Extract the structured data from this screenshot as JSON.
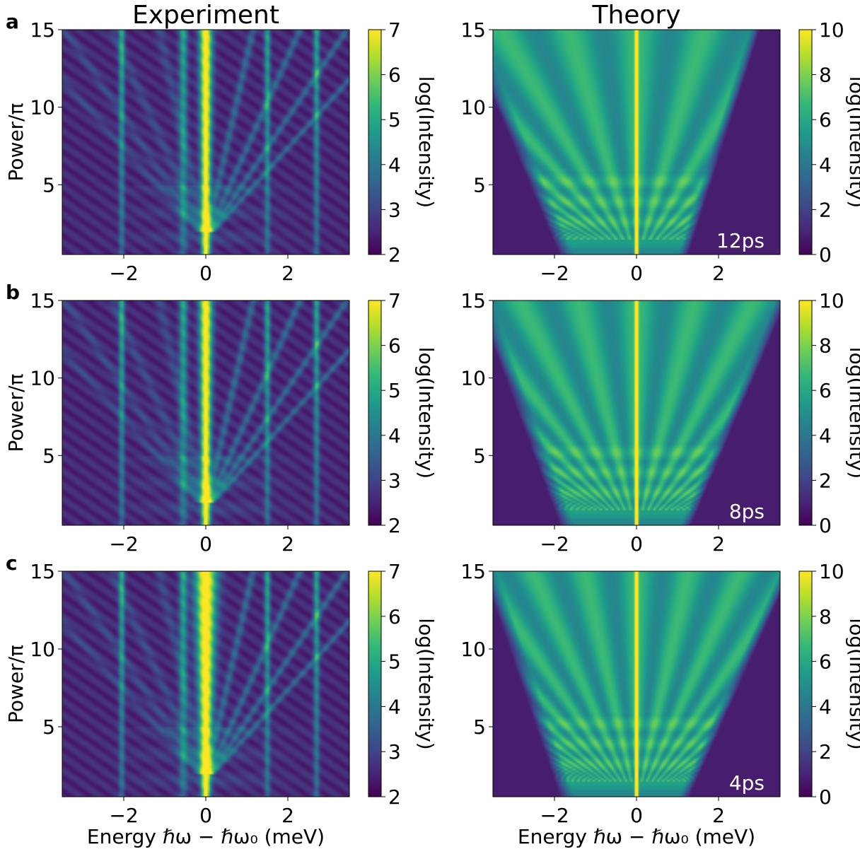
{
  "figure": {
    "column_titles": [
      "Experiment",
      "Theory"
    ],
    "panel_letters": [
      "a",
      "b",
      "c"
    ],
    "xlabel": "Energy ℏω − ℏω₀ (meV)",
    "ylabel": "Power/π",
    "colorbar_label": "log(Intensity)"
  },
  "chart_data": [
    {
      "type": "heatmap",
      "title": "Experiment",
      "panel": "a",
      "xlabel": "",
      "ylabel": "Power/π",
      "xlim": [
        -3.5,
        3.5
      ],
      "ylim": [
        0.5,
        15
      ],
      "xticks": [
        -2,
        0,
        2
      ],
      "yticks": [
        5,
        10,
        15
      ],
      "colorbar": {
        "label": "log(Intensity)",
        "range": [
          2,
          7
        ],
        "ticks": [
          2,
          3,
          4,
          5,
          6,
          7
        ]
      }
    },
    {
      "type": "heatmap",
      "title": "Theory",
      "panel": "a",
      "annotation": "12ps",
      "xlabel": "",
      "ylabel": "",
      "xlim": [
        -3.5,
        3.5
      ],
      "ylim": [
        0.5,
        15
      ],
      "xticks": [
        -2,
        0,
        2
      ],
      "yticks": [
        5,
        10,
        15
      ],
      "colorbar": {
        "label": "log(Intensity)",
        "range": [
          0,
          10
        ],
        "ticks": [
          0,
          2,
          4,
          6,
          8,
          10
        ]
      }
    },
    {
      "type": "heatmap",
      "title": "",
      "panel": "b",
      "xlabel": "",
      "ylabel": "Power/π",
      "xlim": [
        -3.5,
        3.5
      ],
      "ylim": [
        0.5,
        15
      ],
      "xticks": [
        -2,
        0,
        2
      ],
      "yticks": [
        5,
        10,
        15
      ],
      "colorbar": {
        "label": "log(Intensity)",
        "range": [
          2,
          7
        ],
        "ticks": [
          2,
          3,
          4,
          5,
          6,
          7
        ]
      }
    },
    {
      "type": "heatmap",
      "title": "",
      "panel": "b",
      "annotation": "8ps",
      "xlabel": "",
      "ylabel": "",
      "xlim": [
        -3.5,
        3.5
      ],
      "ylim": [
        0.5,
        15
      ],
      "xticks": [
        -2,
        0,
        2
      ],
      "yticks": [
        5,
        10,
        15
      ],
      "colorbar": {
        "label": "log(Intensity)",
        "range": [
          0,
          10
        ],
        "ticks": [
          0,
          2,
          4,
          6,
          8,
          10
        ]
      }
    },
    {
      "type": "heatmap",
      "title": "",
      "panel": "c",
      "xlabel": "Energy ℏω − ℏω₀ (meV)",
      "ylabel": "Power/π",
      "xlim": [
        -3.5,
        3.5
      ],
      "ylim": [
        0.5,
        15
      ],
      "xticks": [
        -2,
        0,
        2
      ],
      "yticks": [
        5,
        10,
        15
      ],
      "colorbar": {
        "label": "log(Intensity)",
        "range": [
          2,
          7
        ],
        "ticks": [
          2,
          3,
          4,
          5,
          6,
          7
        ]
      }
    },
    {
      "type": "heatmap",
      "title": "",
      "panel": "c",
      "annotation": "4ps",
      "xlabel": "Energy ℏω − ℏω₀ (meV)",
      "ylabel": "",
      "xlim": [
        -3.5,
        3.5
      ],
      "ylim": [
        0.5,
        15
      ],
      "xticks": [
        -2,
        0,
        2
      ],
      "yticks": [
        5,
        10,
        15
      ],
      "colorbar": {
        "label": "log(Intensity)",
        "range": [
          0,
          10
        ],
        "ticks": [
          0,
          2,
          4,
          6,
          8,
          10
        ]
      }
    }
  ],
  "colors": {
    "viridis": [
      "#440154",
      "#482878",
      "#3e4a89",
      "#31688e",
      "#26828e",
      "#1f9e89",
      "#35b779",
      "#6ece58",
      "#b5de2b",
      "#fde725"
    ]
  }
}
